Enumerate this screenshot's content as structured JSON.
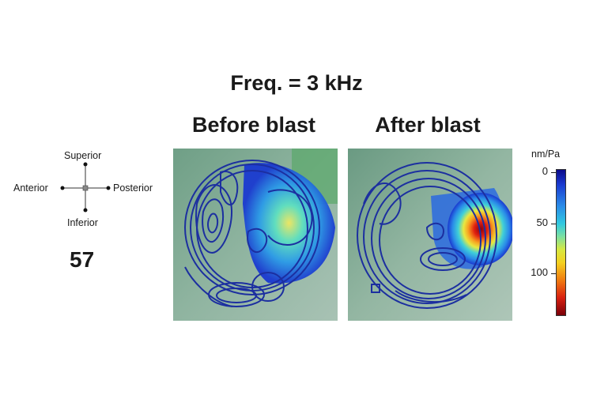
{
  "title": "Freq. = 3 kHz",
  "panels": {
    "before": {
      "title": "Before blast"
    },
    "after": {
      "title": "After blast"
    }
  },
  "orientation": {
    "superior": "Superior",
    "inferior": "Inferior",
    "anterior": "Anterior",
    "posterior": "Posterior"
  },
  "frame_number": "57",
  "colorbar": {
    "unit": "nm/Pa",
    "ticks": [
      "0",
      "50",
      "100"
    ],
    "colors": [
      "#0a0a8a",
      "#2a8ce8",
      "#30c8e0",
      "#d8e840",
      "#f07a10",
      "#7a0008"
    ]
  }
}
